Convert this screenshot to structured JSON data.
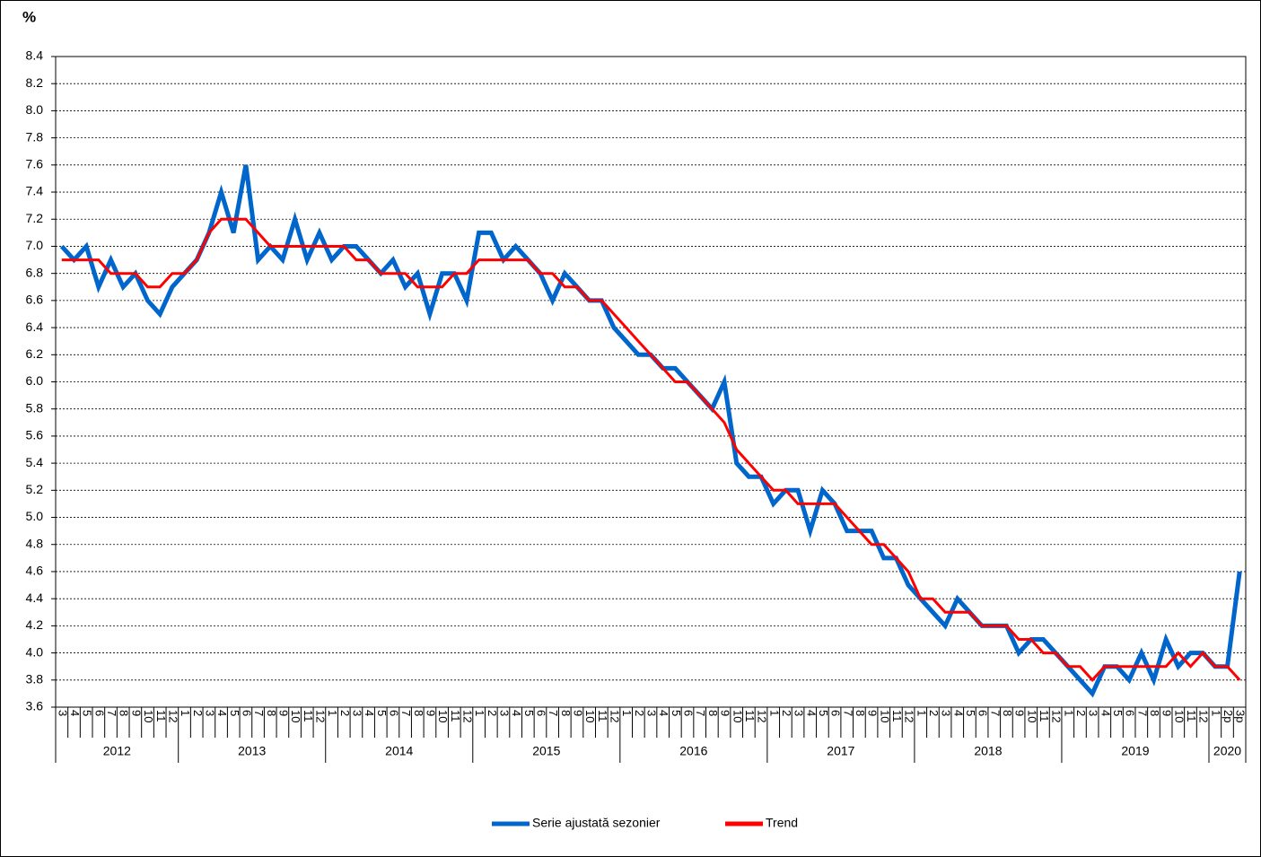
{
  "chart_data": {
    "type": "line",
    "y_label": "%",
    "ylim": [
      3.6,
      8.4
    ],
    "yticks": [
      3.6,
      3.8,
      {
        "value": 4.0,
        "label": "4.0"
      },
      4.2,
      4.4,
      4.6,
      4.8,
      {
        "value": 5.0,
        "label": "5.0"
      },
      5.2,
      5.4,
      5.6,
      5.8,
      {
        "value": 6.0,
        "label": "6.0"
      },
      6.2,
      6.4,
      6.6,
      6.8,
      {
        "value": 7.0,
        "label": "7.0"
      },
      7.2,
      7.4,
      7.6,
      7.8,
      {
        "value": 8.0,
        "label": "8.0"
      },
      8.2,
      8.4
    ],
    "grid": true,
    "legend": "bottom",
    "category_groups": [
      {
        "label": "2012",
        "categories": [
          "3",
          "4",
          "5",
          "6",
          "7",
          "8",
          "9",
          "10",
          "11",
          "12"
        ]
      },
      {
        "label": "2013",
        "categories": [
          "1",
          "2",
          "3",
          "4",
          "5",
          "6",
          "7",
          "8",
          "9",
          "10",
          "11",
          "12"
        ]
      },
      {
        "label": "2014",
        "categories": [
          "1",
          "2",
          "3",
          "4",
          "5",
          "6",
          "7",
          "8",
          "9",
          "10",
          "11",
          "12"
        ]
      },
      {
        "label": "2015",
        "categories": [
          "1",
          "2",
          "3",
          "4",
          "5",
          "6",
          "7",
          "8",
          "9",
          "10",
          "11",
          "12"
        ]
      },
      {
        "label": "2016",
        "categories": [
          "1",
          "2",
          "3",
          "4",
          "5",
          "6",
          "7",
          "8",
          "9",
          "10",
          "11",
          "12"
        ]
      },
      {
        "label": "2017",
        "categories": [
          "1",
          "2",
          "3",
          "4",
          "5",
          "6",
          "7",
          "8",
          "9",
          "10",
          "11",
          "12"
        ]
      },
      {
        "label": "2018",
        "categories": [
          "1",
          "2",
          "3",
          "4",
          "5",
          "6",
          "7",
          "8",
          "9",
          "10",
          "11",
          "12"
        ]
      },
      {
        "label": "2019",
        "categories": [
          "1",
          "2",
          "3",
          "4",
          "5",
          "6",
          "7",
          "8",
          "9",
          "10",
          "11",
          "12"
        ]
      },
      {
        "label": "2020",
        "categories": [
          "1",
          "2p",
          "3p"
        ]
      }
    ],
    "series": [
      {
        "name": "Serie ajustată sezonier",
        "color": "#0066cc",
        "width": 5,
        "values": [
          7.0,
          6.9,
          7.0,
          6.7,
          6.9,
          6.7,
          6.8,
          6.6,
          6.5,
          6.7,
          6.8,
          6.9,
          7.1,
          7.4,
          7.1,
          7.6,
          6.9,
          7.0,
          6.9,
          7.2,
          6.9,
          7.1,
          6.9,
          7.0,
          7.0,
          6.9,
          6.8,
          6.9,
          6.7,
          6.8,
          6.5,
          6.8,
          6.8,
          6.6,
          7.1,
          7.1,
          6.9,
          7.0,
          6.9,
          6.8,
          6.6,
          6.8,
          6.7,
          6.6,
          6.6,
          6.4,
          6.3,
          6.2,
          6.2,
          6.1,
          6.1,
          6.0,
          5.9,
          5.8,
          6.0,
          5.4,
          5.3,
          5.3,
          5.1,
          5.2,
          5.2,
          4.9,
          5.2,
          5.1,
          4.9,
          4.9,
          4.9,
          4.7,
          4.7,
          4.5,
          4.4,
          4.3,
          4.2,
          4.4,
          4.3,
          4.2,
          4.2,
          4.2,
          4.0,
          4.1,
          4.1,
          4.0,
          3.9,
          3.8,
          3.7,
          3.9,
          3.9,
          3.8,
          4.0,
          3.8,
          4.1,
          3.9,
          4.0,
          4.0,
          3.9,
          3.9,
          4.6
        ]
      },
      {
        "name": "Trend",
        "color": "#ff0000",
        "width": 3,
        "values": [
          6.9,
          6.9,
          6.9,
          6.9,
          6.8,
          6.8,
          6.8,
          6.7,
          6.7,
          6.8,
          6.8,
          6.9,
          7.1,
          7.2,
          7.2,
          7.2,
          7.1,
          7.0,
          7.0,
          7.0,
          7.0,
          7.0,
          7.0,
          7.0,
          6.9,
          6.9,
          6.8,
          6.8,
          6.8,
          6.7,
          6.7,
          6.7,
          6.8,
          6.8,
          6.9,
          6.9,
          6.9,
          6.9,
          6.9,
          6.8,
          6.8,
          6.7,
          6.7,
          6.6,
          6.6,
          6.5,
          6.4,
          6.3,
          6.2,
          6.1,
          6.0,
          6.0,
          5.9,
          5.8,
          5.7,
          5.5,
          5.4,
          5.3,
          5.2,
          5.2,
          5.1,
          5.1,
          5.1,
          5.1,
          5.0,
          4.9,
          4.8,
          4.8,
          4.7,
          4.6,
          4.4,
          4.4,
          4.3,
          4.3,
          4.3,
          4.2,
          4.2,
          4.2,
          4.1,
          4.1,
          4.0,
          4.0,
          3.9,
          3.9,
          3.8,
          3.9,
          3.9,
          3.9,
          3.9,
          3.9,
          3.9,
          4.0,
          3.9,
          4.0,
          3.9,
          3.9,
          3.8
        ]
      }
    ]
  }
}
